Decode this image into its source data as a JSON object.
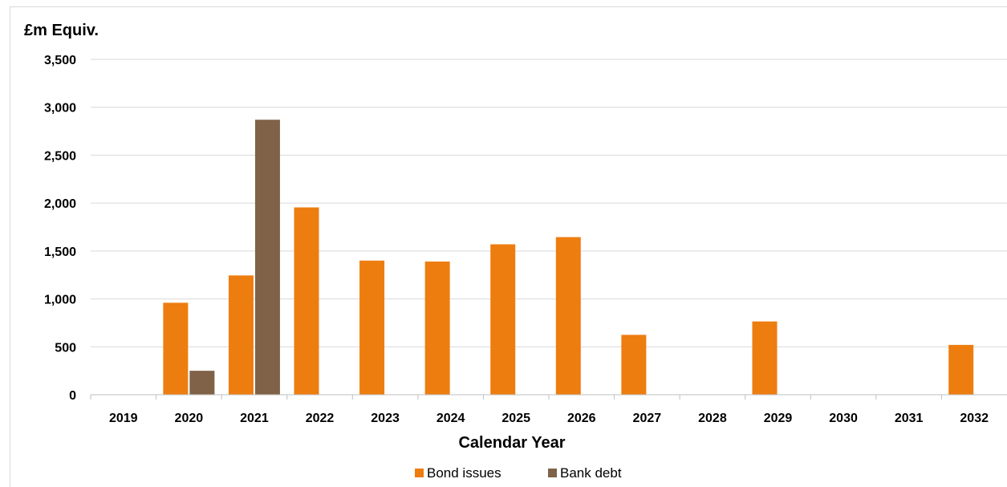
{
  "chart_data": {
    "type": "bar",
    "ylabel": "£m Equiv.",
    "xlabel": "Calendar Year",
    "categories": [
      "2019",
      "2020",
      "2021",
      "2022",
      "2023",
      "2024",
      "2025",
      "2026",
      "2027",
      "2028",
      "2029",
      "2030",
      "2031",
      "2032"
    ],
    "series": [
      {
        "name": "Bond issues",
        "color": "#ed7d0f",
        "values": [
          0,
          960,
          1245,
          1955,
          1400,
          1390,
          1570,
          1645,
          625,
          0,
          765,
          0,
          0,
          520
        ]
      },
      {
        "name": "Bank debt",
        "color": "#7f6247",
        "values": [
          0,
          250,
          2870,
          0,
          0,
          0,
          0,
          0,
          0,
          0,
          0,
          0,
          0,
          0
        ]
      }
    ],
    "ylim": [
      0,
      3500
    ],
    "yticks": [
      0,
      500,
      1000,
      1500,
      2000,
      2500,
      3000,
      3500
    ],
    "ytick_labels": [
      "0",
      "500",
      "1,000",
      "1,500",
      "2,000",
      "2,500",
      "3,000",
      "3,500"
    ],
    "grid": true,
    "legend_position": "bottom"
  }
}
